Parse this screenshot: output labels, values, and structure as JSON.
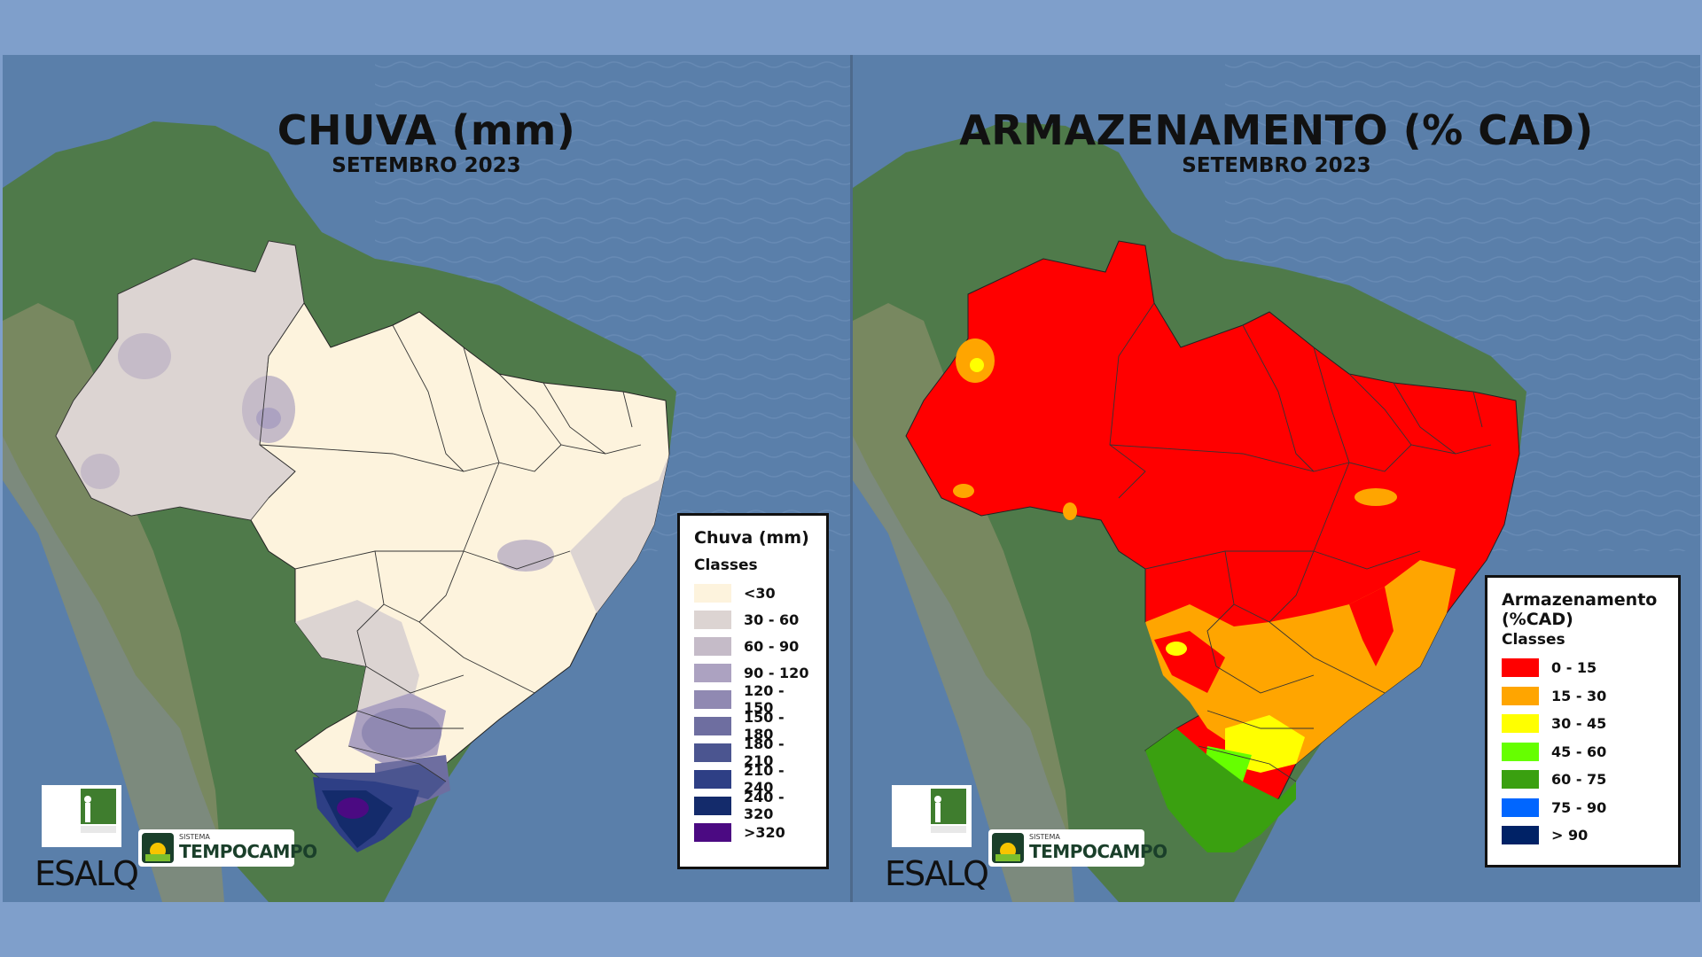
{
  "left_panel": {
    "title": "CHUVA (mm)",
    "subtitle": "SETEMBRO 2023",
    "legend": {
      "title": "Chuva (mm)",
      "classes_label": "Classes",
      "items": [
        {
          "label": "<30",
          "color": "#fdf3dd"
        },
        {
          "label": "30 - 60",
          "color": "#dcd4d2"
        },
        {
          "label": "60 - 90",
          "color": "#c5bbc8"
        },
        {
          "label": "90 - 120",
          "color": "#aca2c1"
        },
        {
          "label": "120 - 150",
          "color": "#9089b2"
        },
        {
          "label": "150 - 180",
          "color": "#6e6ea0"
        },
        {
          "label": "180 - 210",
          "color": "#4b5590"
        },
        {
          "label": "210 - 240",
          "color": "#2e3f85"
        },
        {
          "label": "240 - 320",
          "color": "#142b6b"
        },
        {
          "label": ">320",
          "color": "#4b0a82"
        }
      ]
    }
  },
  "right_panel": {
    "title": "ARMAZENAMENTO (% CAD)",
    "subtitle": "SETEMBRO 2023",
    "legend": {
      "title": "Armazenamento (%CAD)",
      "classes_label": "Classes",
      "items": [
        {
          "label": "0 - 15",
          "color": "#ff0000"
        },
        {
          "label": "15 - 30",
          "color": "#ffa500"
        },
        {
          "label": "30 - 45",
          "color": "#ffff00"
        },
        {
          "label": "45 - 60",
          "color": "#66ff00"
        },
        {
          "label": "60 - 75",
          "color": "#3aa010"
        },
        {
          "label": "75 - 90",
          "color": "#0066ff"
        },
        {
          "label": "> 90",
          "color": "#002266"
        }
      ]
    }
  },
  "logos": {
    "esalq": "ESALQ",
    "tempocampo_small": "SISTEMA",
    "tempocampo_big": "TEMPOCAMPO"
  }
}
